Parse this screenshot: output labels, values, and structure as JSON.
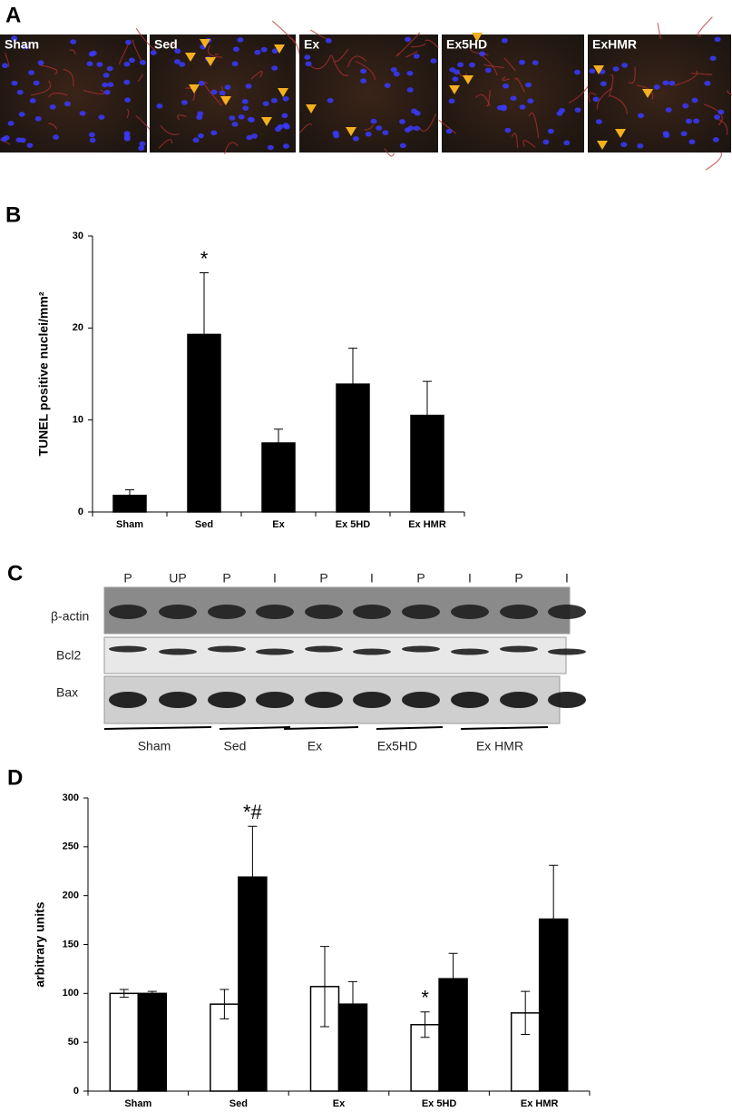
{
  "panel_labels": [
    "A",
    "B",
    "C",
    "D"
  ],
  "micrographs": [
    {
      "label": "Sham"
    },
    {
      "label": "Sed"
    },
    {
      "label": "Ex"
    },
    {
      "label": "Ex5HD"
    },
    {
      "label": "ExHMR"
    }
  ],
  "blot": {
    "lanes": [
      "P",
      "UP",
      "P",
      "I",
      "P",
      "I",
      "P",
      "I",
      "P",
      "I"
    ],
    "rows": [
      "β-actin",
      "Bcl2",
      "Bax"
    ],
    "groups": [
      "Sham",
      "Sed",
      "Ex",
      "Ex5HD",
      "Ex HMR"
    ]
  },
  "chart_data": [
    {
      "type": "bar",
      "ylabel": "TUNEL positive nuclei/mm²",
      "categories": [
        "Sham",
        "Sed",
        "Ex",
        "Ex 5HD",
        "Ex HMR"
      ],
      "series": [
        {
          "color": "#000000",
          "values": [
            1.8,
            19.3,
            7.5,
            13.9,
            10.5
          ],
          "errors": [
            0.6,
            6.7,
            1.5,
            3.9,
            3.7
          ]
        }
      ],
      "ylim": [
        0,
        30
      ],
      "yticks": [
        0,
        10,
        20,
        30
      ],
      "annotations": [
        {
          "text": "*",
          "category": 1,
          "series": 0
        }
      ]
    },
    {
      "type": "bar",
      "ylabel": "arbitrary units",
      "categories": [
        "Sham",
        "Sed",
        "Ex",
        "Ex 5HD",
        "Ex HMR"
      ],
      "series": [
        {
          "color": "#ffffff",
          "values": [
            100,
            89,
            107,
            68,
            80
          ],
          "errors": [
            4,
            15,
            41,
            13,
            22
          ]
        },
        {
          "color": "#000000",
          "values": [
            100,
            219,
            89,
            115,
            176
          ],
          "errors": [
            2,
            52,
            23,
            26,
            55
          ]
        }
      ],
      "ylim": [
        0,
        300
      ],
      "yticks": [
        0,
        50,
        100,
        150,
        200,
        250,
        300
      ],
      "annotations": [
        {
          "text": "*#",
          "category": 1,
          "series": 1
        },
        {
          "text": "*",
          "category": 3,
          "series": 0
        }
      ]
    }
  ]
}
